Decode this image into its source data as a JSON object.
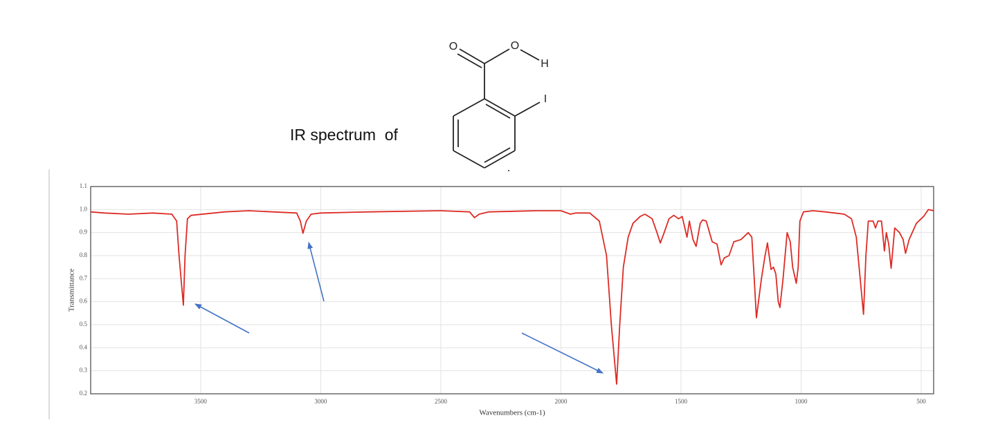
{
  "heading": "IR spectrum  of",
  "molecule": {
    "atoms": [
      "O",
      "O",
      "H",
      "I"
    ]
  },
  "chart_data": {
    "type": "line",
    "xlabel": "Wavenumbers (cm-1)",
    "ylabel": "Transmittance",
    "x": [
      3958,
      3900,
      3800,
      3700,
      3620,
      3600,
      3590,
      3572,
      3565,
      3555,
      3540,
      3400,
      3300,
      3200,
      3100,
      3085,
      3074,
      3060,
      3040,
      3000,
      2800,
      2500,
      2380,
      2360,
      2340,
      2300,
      2100,
      2000,
      1960,
      1940,
      1880,
      1840,
      1810,
      1790,
      1768,
      1755,
      1740,
      1720,
      1700,
      1670,
      1650,
      1620,
      1600,
      1586,
      1570,
      1550,
      1530,
      1510,
      1495,
      1475,
      1465,
      1450,
      1437,
      1420,
      1410,
      1395,
      1370,
      1350,
      1333,
      1320,
      1300,
      1280,
      1250,
      1220,
      1205,
      1195,
      1186,
      1165,
      1150,
      1140,
      1125,
      1115,
      1105,
      1095,
      1088,
      1075,
      1058,
      1045,
      1035,
      1020,
      1012,
      1005,
      990,
      950,
      900,
      860,
      820,
      790,
      770,
      740,
      730,
      720,
      700,
      690,
      680,
      665,
      653,
      645,
      635,
      625,
      610,
      590,
      575,
      565,
      550,
      520,
      490,
      470,
      448
    ],
    "values": [
      0.99,
      0.985,
      0.98,
      0.985,
      0.98,
      0.95,
      0.8,
      0.585,
      0.8,
      0.96,
      0.975,
      0.99,
      0.995,
      0.99,
      0.985,
      0.95,
      0.897,
      0.95,
      0.98,
      0.985,
      0.99,
      0.995,
      0.99,
      0.965,
      0.98,
      0.99,
      0.995,
      0.995,
      0.98,
      0.985,
      0.985,
      0.95,
      0.8,
      0.5,
      0.242,
      0.5,
      0.75,
      0.88,
      0.94,
      0.97,
      0.98,
      0.96,
      0.9,
      0.855,
      0.9,
      0.96,
      0.975,
      0.96,
      0.97,
      0.88,
      0.95,
      0.87,
      0.84,
      0.94,
      0.955,
      0.95,
      0.86,
      0.85,
      0.76,
      0.79,
      0.8,
      0.86,
      0.87,
      0.9,
      0.88,
      0.7,
      0.53,
      0.7,
      0.8,
      0.855,
      0.74,
      0.75,
      0.72,
      0.6,
      0.575,
      0.7,
      0.9,
      0.86,
      0.75,
      0.68,
      0.75,
      0.95,
      0.99,
      0.995,
      0.99,
      0.985,
      0.98,
      0.96,
      0.88,
      0.545,
      0.8,
      0.95,
      0.95,
      0.92,
      0.95,
      0.95,
      0.82,
      0.9,
      0.85,
      0.745,
      0.92,
      0.9,
      0.87,
      0.81,
      0.87,
      0.94,
      0.97,
      1.0,
      0.995
    ],
    "color": "#dd2a24",
    "xlim": [
      3958,
      448
    ],
    "ylim": [
      0.2,
      1.1
    ],
    "xticks": [
      3500,
      3000,
      2500,
      2000,
      1500,
      1000,
      500
    ],
    "yticks": [
      0.2,
      0.3,
      0.4,
      0.5,
      0.6,
      0.7,
      0.8,
      0.9,
      {
        "value": 1,
        "label": "1.0"
      },
      1.1
    ],
    "grid": true
  }
}
